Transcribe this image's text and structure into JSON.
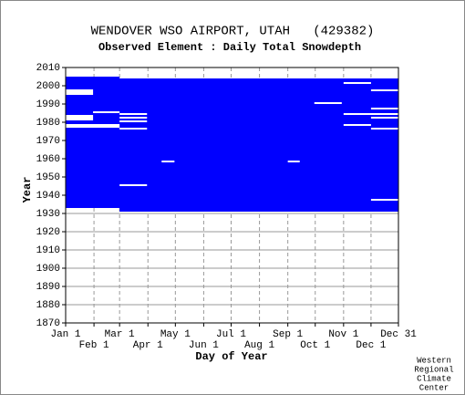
{
  "chart_data": {
    "type": "coverage",
    "title": "WENDOVER WSO AIRPORT, UTAH   (429382)",
    "subtitle": "Observed Element : Daily Total Snowdepth",
    "x_label": "Day of Year",
    "y_label": "Year",
    "credit": [
      "Western",
      "Regional",
      "Climate",
      "Center"
    ],
    "color": "#0000ff",
    "xlim": [
      1,
      365
    ],
    "ylim": [
      1870,
      2010
    ],
    "yticks": [
      1870,
      1880,
      1890,
      1900,
      1910,
      1920,
      1930,
      1940,
      1950,
      1960,
      1970,
      1980,
      1990,
      2000,
      2010
    ],
    "xticks": [
      {
        "value": 1,
        "label": "Jan 1"
      },
      {
        "value": 32,
        "label": "Feb 1"
      },
      {
        "value": 60,
        "label": "Mar 1"
      },
      {
        "value": 91,
        "label": "Apr 1"
      },
      {
        "value": 121,
        "label": "May 1"
      },
      {
        "value": 152,
        "label": "Jun 1"
      },
      {
        "value": 182,
        "label": "Jul 1"
      },
      {
        "value": 213,
        "label": "Aug 1"
      },
      {
        "value": 244,
        "label": "Sep 1"
      },
      {
        "value": 274,
        "label": "Oct 1"
      },
      {
        "value": 305,
        "label": "Nov 1"
      },
      {
        "value": 335,
        "label": "Dec 1"
      },
      {
        "value": 365,
        "label": "Dec 31"
      }
    ],
    "grid": true,
    "blocks": [
      {
        "years": [
          1933,
          2004
        ],
        "days": [
          1,
          365
        ]
      },
      {
        "years": [
          2004,
          2005
        ],
        "days": [
          1,
          60
        ]
      },
      {
        "years": [
          1931,
          1933
        ],
        "days": [
          60,
          365
        ]
      }
    ],
    "gaps": [
      {
        "years": [
          1995,
          1998
        ],
        "days": [
          1,
          31
        ]
      },
      {
        "years": [
          1981,
          1984
        ],
        "days": [
          1,
          31
        ]
      },
      {
        "years": [
          1977,
          1979
        ],
        "days": [
          1,
          60
        ]
      },
      {
        "years": [
          1985,
          1986
        ],
        "days": [
          31,
          60
        ]
      },
      {
        "years": [
          1984,
          1985
        ],
        "days": [
          60,
          90
        ]
      },
      {
        "years": [
          1982,
          1983
        ],
        "days": [
          60,
          90
        ]
      },
      {
        "years": [
          1980,
          1981
        ],
        "days": [
          60,
          90
        ]
      },
      {
        "years": [
          1976,
          1977
        ],
        "days": [
          60,
          90
        ]
      },
      {
        "years": [
          1945,
          1946
        ],
        "days": [
          60,
          90
        ]
      },
      {
        "years": [
          1958,
          1959
        ],
        "days": [
          106,
          120
        ]
      },
      {
        "years": [
          1958,
          1959
        ],
        "days": [
          244,
          257
        ]
      },
      {
        "years": [
          2001,
          2002
        ],
        "days": [
          305,
          335
        ]
      },
      {
        "years": [
          1990,
          1991
        ],
        "days": [
          273,
          303
        ]
      },
      {
        "years": [
          1984,
          1985
        ],
        "days": [
          305,
          365
        ]
      },
      {
        "years": [
          1978,
          1979
        ],
        "days": [
          305,
          335
        ]
      },
      {
        "years": [
          1976,
          1977
        ],
        "days": [
          335,
          365
        ]
      },
      {
        "years": [
          1997,
          1998
        ],
        "days": [
          335,
          365
        ]
      },
      {
        "years": [
          1987,
          1988
        ],
        "days": [
          335,
          365
        ]
      },
      {
        "years": [
          1982,
          1983
        ],
        "days": [
          335,
          365
        ]
      },
      {
        "years": [
          1937,
          1938
        ],
        "days": [
          335,
          365
        ]
      }
    ]
  }
}
